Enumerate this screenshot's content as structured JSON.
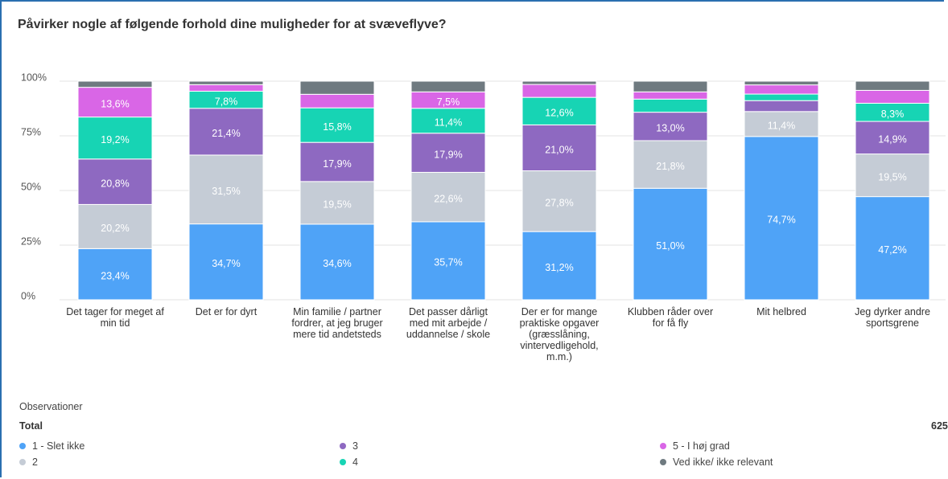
{
  "chart_data": {
    "type": "stacked_bar",
    "title": "Påvirker nogle af følgende forhold dine muligheder for at svæveflyve?",
    "categories": [
      "Det tager for meget af min tid",
      "Det er for dyrt",
      "Min familie / partner fordrer, at jeg bruger mere tid andetsteds",
      "Det passer dårligt med mit arbejde / uddannelse / skole",
      "Der er for mange praktiske opgaver (græsslåning, vintervedligehold, m.m.)",
      "Klubben råder over for få fly",
      "Mit helbred",
      "Jeg dyrker andre sportsgrene"
    ],
    "series": [
      {
        "name": "1 - Slet ikke",
        "color": "#4fa3f7",
        "values": [
          23.4,
          34.7,
          34.6,
          35.7,
          31.2,
          51.0,
          74.7,
          47.2
        ],
        "value_labels": [
          "23,4%",
          "34,7%",
          "34,6%",
          "35,7%",
          "31,2%",
          "51,0%",
          "74,7%",
          "47,2%"
        ]
      },
      {
        "name": "2",
        "color": "#c5ccd6",
        "values": [
          20.2,
          31.5,
          19.5,
          22.6,
          27.8,
          21.8,
          11.4,
          19.5
        ],
        "value_labels": [
          "20,2%",
          "31,5%",
          "19,5%",
          "22,6%",
          "27,8%",
          "21,8%",
          "11,4%",
          "19,5%"
        ]
      },
      {
        "name": "3",
        "color": "#8e69c1",
        "values": [
          20.8,
          21.4,
          17.9,
          17.9,
          21.0,
          13.0,
          5.0,
          14.9
        ],
        "value_labels": [
          "20,8%",
          "21,4%",
          "17,9%",
          "17,9%",
          "21,0%",
          "13,0%",
          null,
          "14,9%"
        ]
      },
      {
        "name": "4",
        "color": "#17d4b4",
        "values": [
          19.2,
          7.8,
          15.8,
          11.4,
          12.6,
          6.0,
          3.0,
          8.3
        ],
        "value_labels": [
          "19,2%",
          "7,8%",
          "15,8%",
          "11,4%",
          "12,6%",
          null,
          null,
          "8,3%"
        ]
      },
      {
        "name": "5 - I høj grad",
        "color": "#d966e6",
        "values": [
          13.6,
          3.0,
          6.2,
          7.5,
          5.9,
          3.3,
          4.2,
          5.9
        ],
        "value_labels": [
          "13,6%",
          null,
          null,
          "7,5%",
          null,
          null,
          null,
          null
        ]
      },
      {
        "name": "Ved ikke/ ikke relevant",
        "color": "#6f7a80",
        "values": [
          2.8,
          1.6,
          6.0,
          4.9,
          1.5,
          4.9,
          1.7,
          4.2
        ]
      }
    ],
    "ylim": [
      0,
      100
    ],
    "yticks": [
      {
        "value": 0,
        "label": "0%"
      },
      {
        "value": 25,
        "label": "25%"
      },
      {
        "value": 50,
        "label": "50%"
      },
      {
        "value": 75,
        "label": "75%"
      },
      {
        "value": 100,
        "label": "100%"
      }
    ],
    "grid": true,
    "observations_label": "Observationer",
    "total_label": "Total",
    "total": 625
  }
}
